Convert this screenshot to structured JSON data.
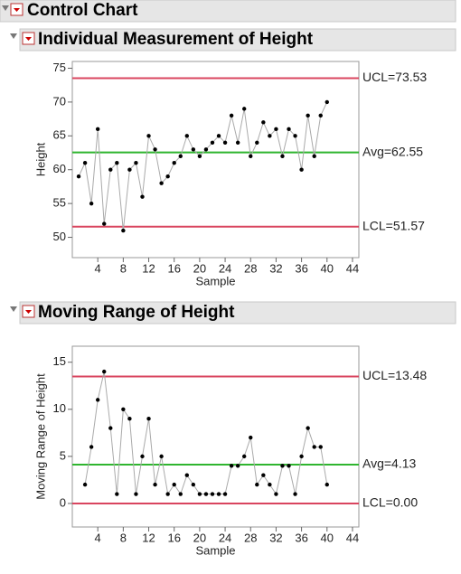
{
  "header": {
    "title": "Control Chart"
  },
  "chart_data": [
    {
      "type": "line",
      "title": "Individual Measurement of Height",
      "x_label": "Sample",
      "y_label": "Height",
      "x": [
        1,
        2,
        3,
        4,
        5,
        6,
        7,
        8,
        9,
        10,
        11,
        12,
        13,
        14,
        15,
        16,
        17,
        18,
        19,
        20,
        21,
        22,
        23,
        24,
        25,
        26,
        27,
        28,
        29,
        30,
        31,
        32,
        33,
        34,
        35,
        36,
        37,
        38,
        39,
        40
      ],
      "series": [
        {
          "color": "#aaaaaa",
          "values": [
            59,
            61,
            55,
            66,
            52,
            60,
            61,
            51,
            60,
            61,
            56,
            65,
            63,
            58,
            59,
            61,
            62,
            65,
            63,
            62,
            63,
            64,
            65,
            64,
            68,
            64,
            69,
            62,
            64,
            67,
            65,
            66,
            62,
            66,
            65,
            60,
            68,
            62,
            68,
            70
          ]
        }
      ],
      "limits": [
        {
          "label": "UCL=73.53",
          "value": 73.53,
          "color": "#d9455f"
        },
        {
          "label": "Avg=62.55",
          "value": 62.55,
          "color": "#2fb52f"
        },
        {
          "label": "LCL=51.57",
          "value": 51.57,
          "color": "#d9455f"
        }
      ],
      "xlim": [
        0,
        45
      ],
      "xticks": [
        4,
        8,
        12,
        16,
        20,
        24,
        28,
        32,
        36,
        40,
        44
      ],
      "ylim": [
        47,
        76
      ],
      "yticks": [
        50,
        55,
        60,
        65,
        70,
        75
      ]
    },
    {
      "type": "line",
      "title": "Moving Range of Height",
      "x_label": "Sample",
      "y_label": "Moving Range of Height",
      "x": [
        1,
        2,
        3,
        4,
        5,
        6,
        7,
        8,
        9,
        10,
        11,
        12,
        13,
        14,
        15,
        16,
        17,
        18,
        19,
        20,
        21,
        22,
        23,
        24,
        25,
        26,
        27,
        28,
        29,
        30,
        31,
        32,
        33,
        34,
        35,
        36,
        37,
        38,
        39,
        40
      ],
      "series": [
        {
          "color": "#aaaaaa",
          "values": [
            null,
            2,
            6,
            11,
            14,
            8,
            1,
            10,
            9,
            1,
            5,
            9,
            2,
            5,
            1,
            2,
            1,
            3,
            2,
            1,
            1,
            1,
            1,
            1,
            4,
            4,
            5,
            7,
            2,
            3,
            2,
            1,
            4,
            4,
            1,
            5,
            8,
            6,
            6,
            2
          ]
        }
      ],
      "limits": [
        {
          "label": "UCL=13.48",
          "value": 13.48,
          "color": "#d9455f"
        },
        {
          "label": "Avg=4.13",
          "value": 4.13,
          "color": "#2fb52f"
        },
        {
          "label": "LCL=0.00",
          "value": 0,
          "color": "#d9455f"
        }
      ],
      "xlim": [
        0,
        45
      ],
      "xticks": [
        4,
        8,
        12,
        16,
        20,
        24,
        28,
        32,
        36,
        40,
        44
      ],
      "ylim": [
        -2.5,
        16.7
      ],
      "yticks": [
        0,
        5,
        10,
        15
      ]
    }
  ]
}
